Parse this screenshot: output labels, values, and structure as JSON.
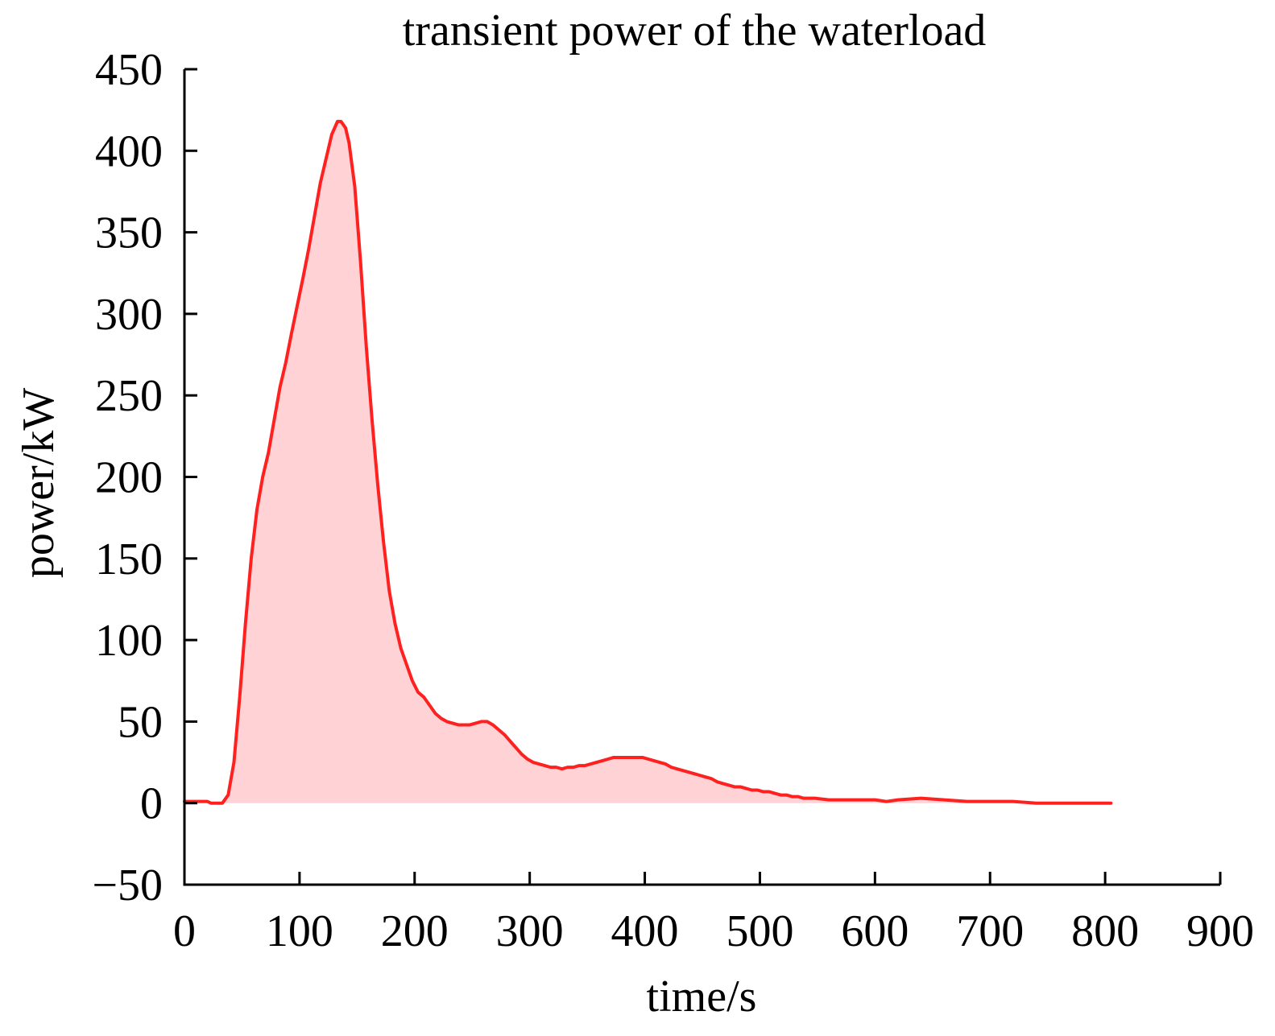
{
  "chart_data": {
    "type": "area",
    "title": "transient power of the waterload",
    "xlabel": "time/s",
    "ylabel": "power/kW",
    "xlim": [
      0,
      900
    ],
    "ylim": [
      -50,
      450
    ],
    "xticks": [
      0,
      100,
      200,
      300,
      400,
      500,
      600,
      700,
      800,
      900
    ],
    "xtick_labels": [
      "0",
      "100",
      "200",
      "300",
      "400",
      "500",
      "600",
      "700",
      "800",
      "900"
    ],
    "yticks": [
      -50,
      0,
      50,
      100,
      150,
      200,
      250,
      300,
      350,
      400,
      450
    ],
    "ytick_labels": [
      "−50",
      "0",
      "50",
      "100",
      "150",
      "200",
      "250",
      "300",
      "350",
      "400",
      "450"
    ],
    "grid": false,
    "colors": {
      "line": "#ff2020",
      "fill": "#ffd2d5",
      "axis": "#000000"
    },
    "series": [
      {
        "x": [
          0,
          10,
          20,
          23,
          28,
          33,
          38,
          43,
          48,
          53,
          58,
          63,
          68,
          73,
          78,
          83,
          88,
          93,
          98,
          103,
          108,
          113,
          118,
          123,
          128,
          133,
          136,
          140,
          143,
          148,
          153,
          158,
          163,
          168,
          173,
          178,
          183,
          188,
          193,
          198,
          203,
          208,
          213,
          218,
          223,
          228,
          233,
          238,
          243,
          248,
          253,
          258,
          263,
          268,
          273,
          278,
          283,
          288,
          293,
          298,
          303,
          308,
          313,
          318,
          323,
          328,
          333,
          338,
          343,
          348,
          353,
          358,
          363,
          368,
          373,
          378,
          383,
          388,
          393,
          398,
          403,
          408,
          413,
          418,
          423,
          428,
          433,
          438,
          443,
          448,
          453,
          458,
          463,
          468,
          473,
          478,
          483,
          488,
          493,
          498,
          503,
          508,
          513,
          518,
          523,
          528,
          533,
          538,
          543,
          548,
          560,
          580,
          600,
          610,
          620,
          640,
          660,
          680,
          700,
          720,
          740,
          760,
          780,
          795,
          805
        ],
        "y": [
          1,
          1,
          1,
          0,
          0,
          0,
          5,
          25,
          65,
          110,
          150,
          180,
          200,
          215,
          235,
          255,
          270,
          288,
          305,
          322,
          340,
          360,
          380,
          395,
          410,
          418,
          418,
          414,
          405,
          378,
          332,
          280,
          235,
          195,
          160,
          130,
          110,
          95,
          85,
          75,
          68,
          65,
          60,
          55,
          52,
          50,
          49,
          48,
          48,
          48,
          49,
          50,
          50,
          48,
          45,
          42,
          38,
          34,
          30,
          27,
          25,
          24,
          23,
          22,
          22,
          21,
          22,
          22,
          23,
          23,
          24,
          25,
          26,
          27,
          28,
          28,
          28,
          28,
          28,
          28,
          27,
          26,
          25,
          24,
          22,
          21,
          20,
          19,
          18,
          17,
          16,
          15,
          13,
          12,
          11,
          10,
          10,
          9,
          8,
          8,
          7,
          7,
          6,
          5,
          5,
          4,
          4,
          3,
          3,
          3,
          2,
          2,
          2,
          1,
          2,
          3,
          2,
          1,
          1,
          1,
          0,
          0,
          0,
          0,
          0
        ]
      }
    ]
  }
}
